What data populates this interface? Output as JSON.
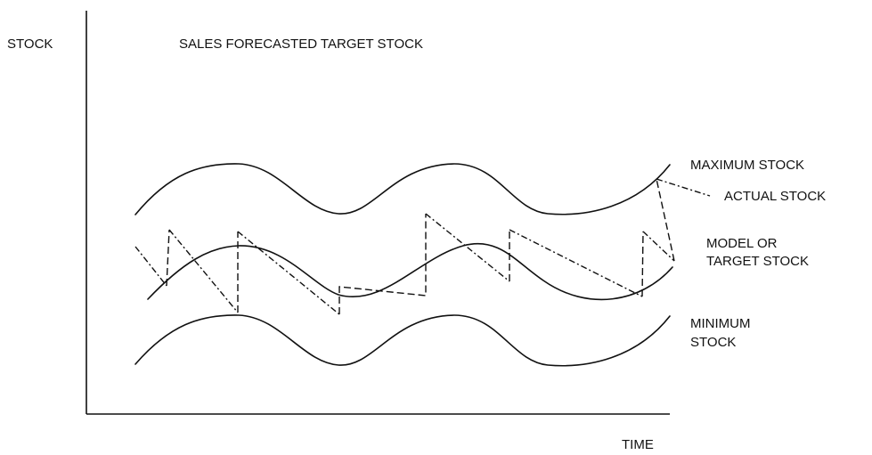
{
  "axes": {
    "y_label": "STOCK",
    "x_label": "TIME"
  },
  "title": "SALES FORECASTED TARGET STOCK",
  "curves": {
    "maximum": {
      "label": "MAXIMUM STOCK"
    },
    "actual": {
      "label": "ACTUAL STOCK"
    },
    "model": {
      "label_line1": "MODEL OR",
      "label_line2": "TARGET STOCK"
    },
    "minimum": {
      "label_line1": "MINIMUM",
      "label_line2": "STOCK"
    }
  }
}
